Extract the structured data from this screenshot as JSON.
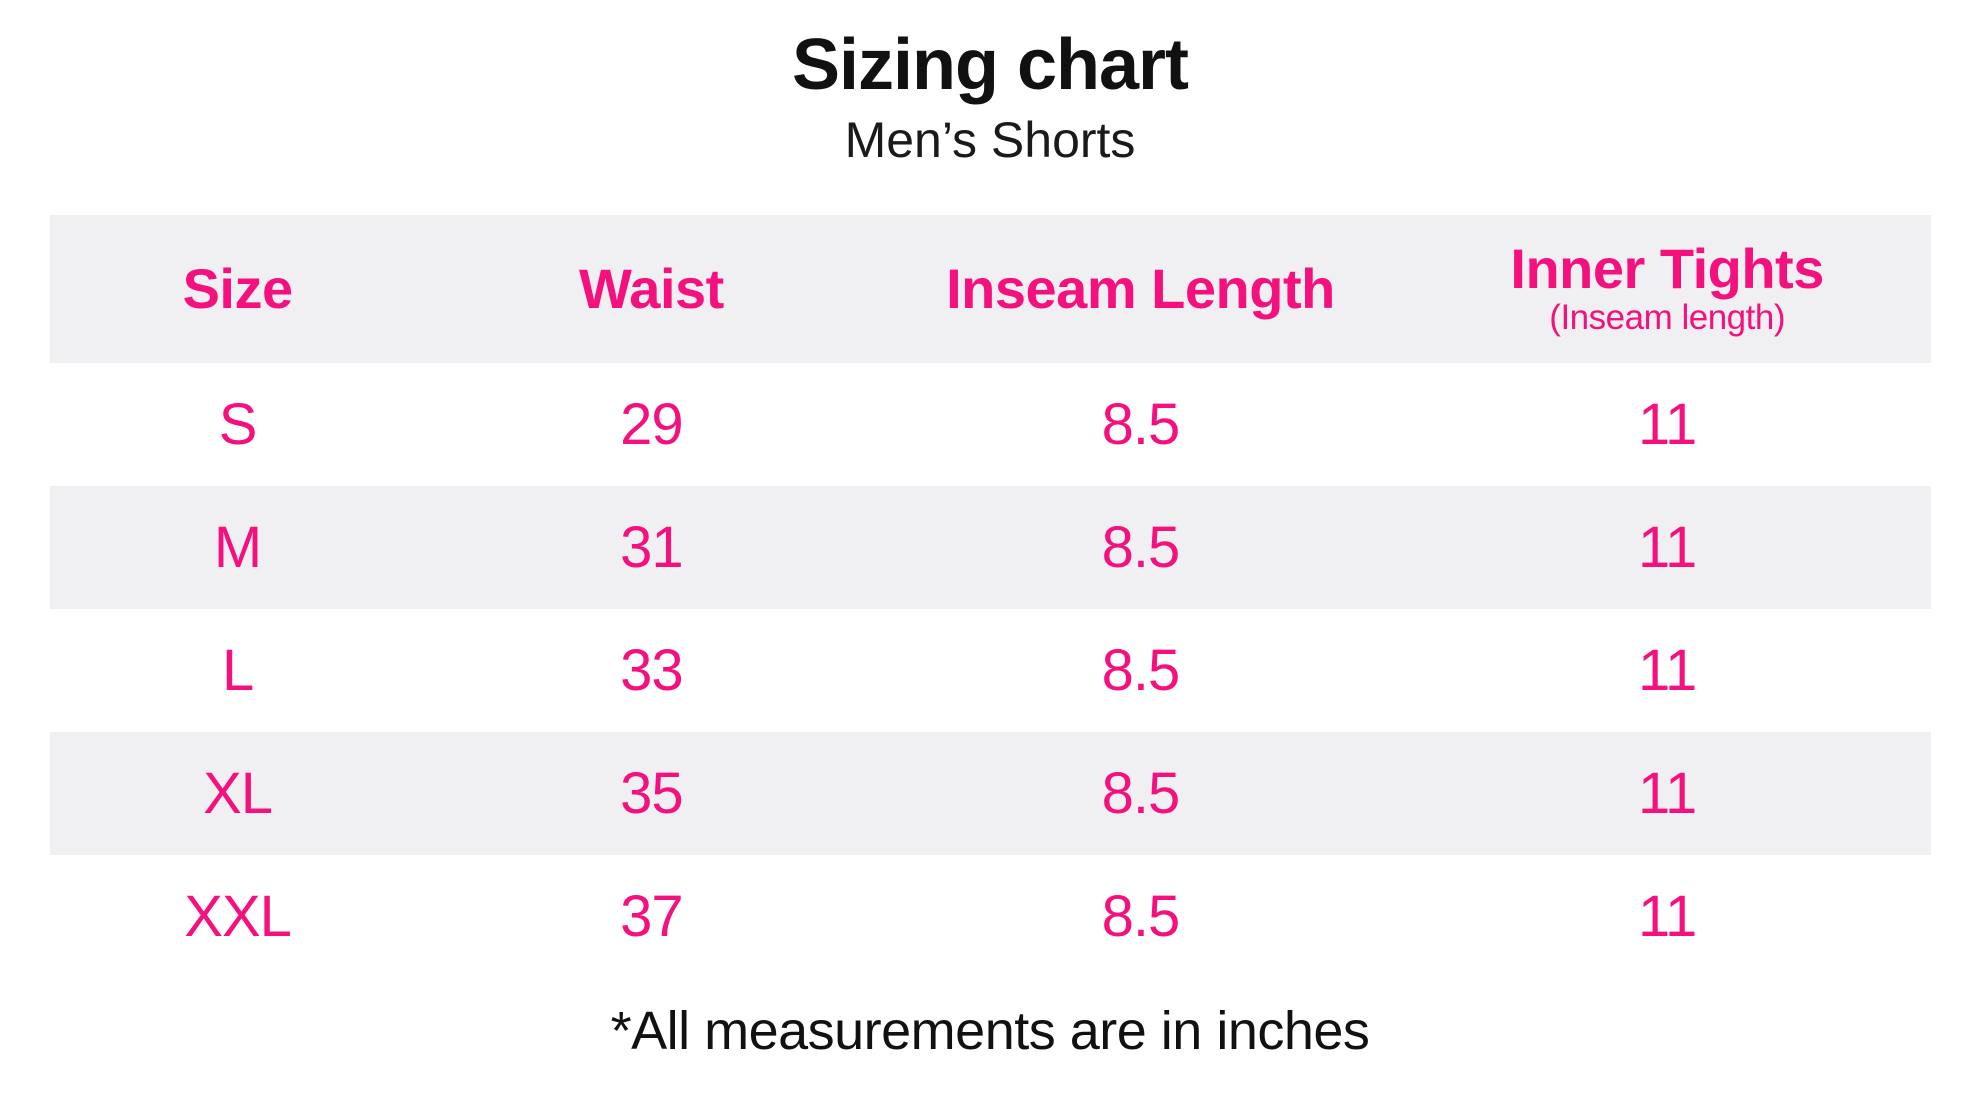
{
  "page": {
    "title": "Sizing chart",
    "subtitle": "Men’s Shorts",
    "footnote": "*All measurements are in inches"
  },
  "colors": {
    "accent_pink": "#F4117E",
    "row_stripe_gray": "#F0F0F2",
    "text_black": "#111111",
    "background": "#FFFFFF"
  },
  "table": {
    "headers": [
      {
        "label": "Size",
        "sublabel": ""
      },
      {
        "label": "Waist",
        "sublabel": ""
      },
      {
        "label": "Inseam Length",
        "sublabel": ""
      },
      {
        "label": "Inner Tights",
        "sublabel": "(Inseam length)"
      }
    ],
    "rows": [
      {
        "size": "S",
        "waist": "29",
        "inseam": "8.5",
        "inner_tights": "11"
      },
      {
        "size": "M",
        "waist": "31",
        "inseam": "8.5",
        "inner_tights": "11"
      },
      {
        "size": "L",
        "waist": "33",
        "inseam": "8.5",
        "inner_tights": "11"
      },
      {
        "size": "XL",
        "waist": "35",
        "inseam": "8.5",
        "inner_tights": "11"
      },
      {
        "size": "XXL",
        "waist": "37",
        "inseam": "8.5",
        "inner_tights": "11"
      }
    ],
    "units_note": "inches"
  },
  "chart_data": {
    "type": "table",
    "title": "Sizing chart",
    "subtitle": "Men’s Shorts",
    "columns": [
      "Size",
      "Waist",
      "Inseam Length",
      "Inner Tights (Inseam length)"
    ],
    "rows": [
      [
        "S",
        29,
        8.5,
        11
      ],
      [
        "M",
        31,
        8.5,
        11
      ],
      [
        "L",
        33,
        8.5,
        11
      ],
      [
        "XL",
        35,
        8.5,
        11
      ],
      [
        "XXL",
        37,
        8.5,
        11
      ]
    ],
    "footnote": "*All measurements are in inches",
    "units": "inches",
    "layout": "striped rows, header row gray, accent pink text"
  }
}
